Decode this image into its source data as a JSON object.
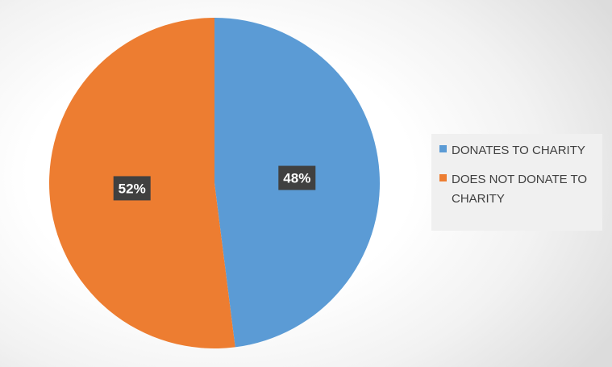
{
  "chart_data": {
    "type": "pie",
    "title": "",
    "slices": [
      {
        "label": "DONATES TO CHARITY",
        "value": 48,
        "display": "48%",
        "color": "#5b9bd5"
      },
      {
        "label": "DOES NOT DONATE TO CHARITY",
        "value": 52,
        "display": "52%",
        "color": "#ed7d31"
      }
    ],
    "legend_position": "right"
  }
}
